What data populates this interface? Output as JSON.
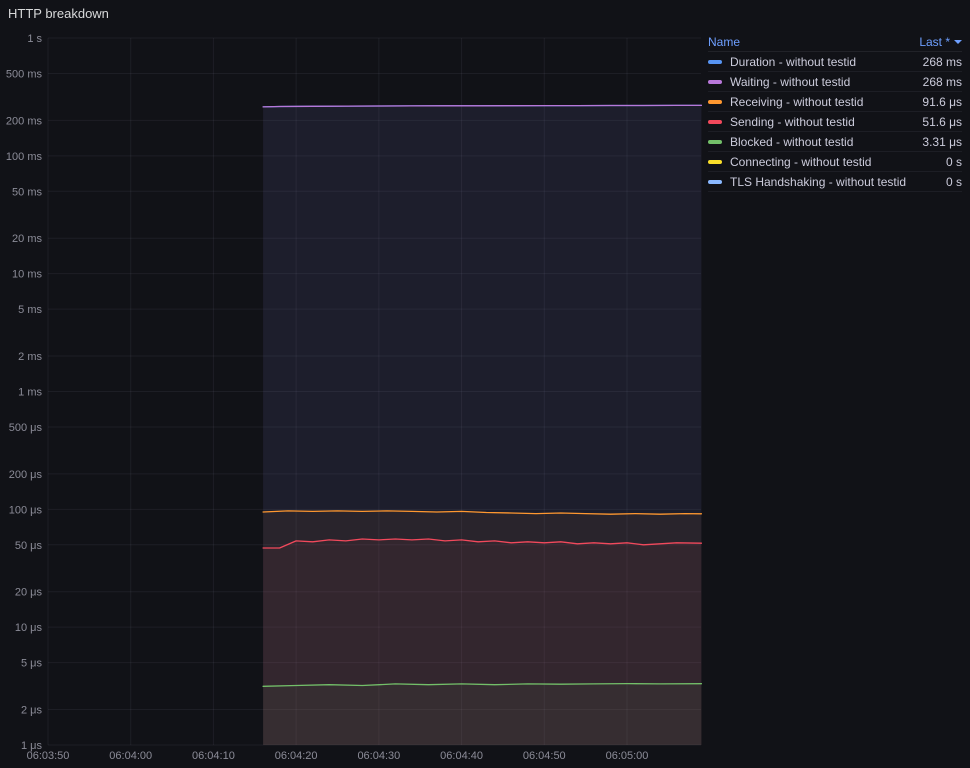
{
  "panel": {
    "title": "HTTP breakdown"
  },
  "legend": {
    "columns": {
      "name": "Name",
      "value": "Last *"
    },
    "rows": [
      {
        "label": "Duration - without testid",
        "value": "268 ms",
        "color": "#5794F2"
      },
      {
        "label": "Waiting - without testid",
        "value": "268 ms",
        "color": "#B877D9"
      },
      {
        "label": "Receiving - without testid",
        "value": "91.6 μs",
        "color": "#FF9830"
      },
      {
        "label": "Sending - without testid",
        "value": "51.6 μs",
        "color": "#F2495C"
      },
      {
        "label": "Blocked - without testid",
        "value": "3.31 μs",
        "color": "#73BF69"
      },
      {
        "label": "Connecting - without testid",
        "value": "0 s",
        "color": "#FADE2A"
      },
      {
        "label": "TLS Handshaking - without testid",
        "value": "0 s",
        "color": "#8AB8FF"
      }
    ]
  },
  "chart_data": {
    "type": "line",
    "title": "HTTP breakdown",
    "y_axis": {
      "scale": "log",
      "unit": "seconds",
      "range": [
        1e-06,
        1
      ],
      "ticks": [
        {
          "label": "1 s",
          "value": 1
        },
        {
          "label": "500 ms",
          "value": 0.5
        },
        {
          "label": "200 ms",
          "value": 0.2
        },
        {
          "label": "100 ms",
          "value": 0.1
        },
        {
          "label": "50 ms",
          "value": 0.05
        },
        {
          "label": "20 ms",
          "value": 0.02
        },
        {
          "label": "10 ms",
          "value": 0.01
        },
        {
          "label": "5 ms",
          "value": 0.005
        },
        {
          "label": "2 ms",
          "value": 0.002
        },
        {
          "label": "1 ms",
          "value": 0.001
        },
        {
          "label": "500 μs",
          "value": 0.0005
        },
        {
          "label": "200 μs",
          "value": 0.0002
        },
        {
          "label": "100 μs",
          "value": 0.0001
        },
        {
          "label": "50 μs",
          "value": 5e-05
        },
        {
          "label": "20 μs",
          "value": 2e-05
        },
        {
          "label": "10 μs",
          "value": 1e-05
        },
        {
          "label": "5 μs",
          "value": 5e-06
        },
        {
          "label": "2 μs",
          "value": 2e-06
        },
        {
          "label": "1 μs",
          "value": 1e-06
        }
      ]
    },
    "x_axis": {
      "grid": true,
      "ticks": [
        {
          "label": "06:03:50",
          "t": 0
        },
        {
          "label": "06:04:00",
          "t": 10
        },
        {
          "label": "06:04:10",
          "t": 20
        },
        {
          "label": "06:04:20",
          "t": 30
        },
        {
          "label": "06:04:30",
          "t": 40
        },
        {
          "label": "06:04:40",
          "t": 50
        },
        {
          "label": "06:04:50",
          "t": 60
        },
        {
          "label": "06:05:00",
          "t": 70
        }
      ]
    },
    "legend_position": "right-table",
    "series": [
      {
        "name": "Duration - without testid",
        "color": "#5794F2",
        "last": "268 ms",
        "points": [
          [
            26,
            0.26
          ],
          [
            28,
            0.262
          ],
          [
            32,
            0.2635
          ],
          [
            36,
            0.2645
          ],
          [
            40,
            0.265
          ],
          [
            44,
            0.2655
          ],
          [
            48,
            0.266
          ],
          [
            52,
            0.266
          ],
          [
            56,
            0.2665
          ],
          [
            60,
            0.2668
          ],
          [
            64,
            0.267
          ],
          [
            68,
            0.2672
          ],
          [
            72,
            0.2675
          ],
          [
            76,
            0.2678
          ],
          [
            79,
            0.268
          ]
        ]
      },
      {
        "name": "Waiting - without testid",
        "color": "#B877D9",
        "last": "268 ms",
        "points": [
          [
            26,
            0.26
          ],
          [
            28,
            0.262
          ],
          [
            32,
            0.2635
          ],
          [
            36,
            0.2645
          ],
          [
            40,
            0.265
          ],
          [
            44,
            0.2655
          ],
          [
            48,
            0.266
          ],
          [
            52,
            0.266
          ],
          [
            56,
            0.2665
          ],
          [
            60,
            0.2668
          ],
          [
            64,
            0.267
          ],
          [
            68,
            0.2672
          ],
          [
            72,
            0.2675
          ],
          [
            76,
            0.2678
          ],
          [
            79,
            0.268
          ]
        ]
      },
      {
        "name": "Receiving - without testid",
        "color": "#FF9830",
        "last": "91.6 μs",
        "points": [
          [
            26,
            9.5e-05
          ],
          [
            29,
            9.7e-05
          ],
          [
            32,
            9.6e-05
          ],
          [
            35,
            9.7e-05
          ],
          [
            38,
            9.6e-05
          ],
          [
            41,
            9.7e-05
          ],
          [
            44,
            9.6e-05
          ],
          [
            47,
            9.5e-05
          ],
          [
            50,
            9.6e-05
          ],
          [
            53,
            9.4e-05
          ],
          [
            56,
            9.3e-05
          ],
          [
            59,
            9.2e-05
          ],
          [
            62,
            9.3e-05
          ],
          [
            65,
            9.2e-05
          ],
          [
            68,
            9.1e-05
          ],
          [
            71,
            9.2e-05
          ],
          [
            74,
            9.1e-05
          ],
          [
            77,
            9.2e-05
          ],
          [
            79,
            9.16e-05
          ]
        ]
      },
      {
        "name": "Sending - without testid",
        "color": "#F2495C",
        "last": "51.6 μs",
        "points": [
          [
            26,
            4.7e-05
          ],
          [
            28,
            4.7e-05
          ],
          [
            30,
            5.4e-05
          ],
          [
            32,
            5.3e-05
          ],
          [
            34,
            5.5e-05
          ],
          [
            36,
            5.4e-05
          ],
          [
            38,
            5.6e-05
          ],
          [
            40,
            5.5e-05
          ],
          [
            42,
            5.6e-05
          ],
          [
            44,
            5.5e-05
          ],
          [
            46,
            5.6e-05
          ],
          [
            48,
            5.4e-05
          ],
          [
            50,
            5.5e-05
          ],
          [
            52,
            5.3e-05
          ],
          [
            54,
            5.4e-05
          ],
          [
            56,
            5.2e-05
          ],
          [
            58,
            5.3e-05
          ],
          [
            60,
            5.2e-05
          ],
          [
            62,
            5.3e-05
          ],
          [
            64,
            5.1e-05
          ],
          [
            66,
            5.2e-05
          ],
          [
            68,
            5.1e-05
          ],
          [
            70,
            5.2e-05
          ],
          [
            72,
            5e-05
          ],
          [
            74,
            5.1e-05
          ],
          [
            76,
            5.2e-05
          ],
          [
            79,
            5.16e-05
          ]
        ]
      },
      {
        "name": "Blocked - without testid",
        "color": "#73BF69",
        "last": "3.31 μs",
        "points": [
          [
            26,
            3.15e-06
          ],
          [
            30,
            3.2e-06
          ],
          [
            34,
            3.25e-06
          ],
          [
            38,
            3.2e-06
          ],
          [
            42,
            3.3e-06
          ],
          [
            46,
            3.25e-06
          ],
          [
            50,
            3.3e-06
          ],
          [
            54,
            3.25e-06
          ],
          [
            58,
            3.3e-06
          ],
          [
            62,
            3.28e-06
          ],
          [
            66,
            3.3e-06
          ],
          [
            70,
            3.32e-06
          ],
          [
            74,
            3.3e-06
          ],
          [
            79,
            3.31e-06
          ]
        ]
      },
      {
        "name": "Connecting - without testid",
        "color": "#FADE2A",
        "last": "0 s",
        "points": []
      },
      {
        "name": "TLS Handshaking - without testid",
        "color": "#8AB8FF",
        "last": "0 s",
        "points": []
      }
    ]
  }
}
